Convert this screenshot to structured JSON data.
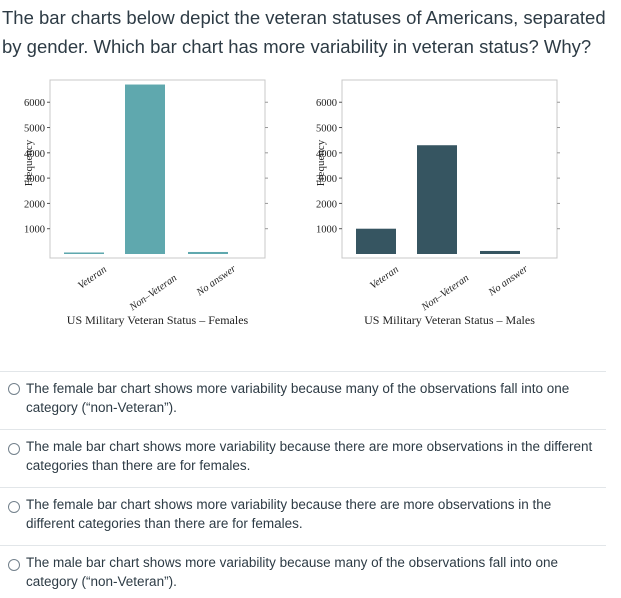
{
  "question": "The bar charts below depict the veteran statuses of Americans, separated by gender. Which bar chart has more variability in veteran status? Why?",
  "chart_data": [
    {
      "type": "bar",
      "title": "US Military Veteran Status – Females",
      "ylabel": "Frequency",
      "xlabel": "",
      "categories": [
        "Veteran",
        "Non–Veteran",
        "No answer"
      ],
      "values": [
        60,
        6700,
        80
      ],
      "yticks": [
        1000,
        2000,
        3000,
        4000,
        5000,
        6000
      ],
      "ylim": [
        0,
        6800
      ],
      "bar_color": "#5fa8ae",
      "grid": false
    },
    {
      "type": "bar",
      "title": "US Military Veteran Status – Males",
      "ylabel": "Frequency",
      "xlabel": "",
      "categories": [
        "Veteran",
        "Non–Veteran",
        "No answer"
      ],
      "values": [
        1000,
        4300,
        120
      ],
      "yticks": [
        1000,
        2000,
        3000,
        4000,
        5000,
        6000
      ],
      "ylim": [
        0,
        6800
      ],
      "bar_color": "#365561",
      "grid": false
    }
  ],
  "answers": [
    {
      "text": "The female bar chart shows more variability because many of the observations fall into one category (“non-Veteran”)."
    },
    {
      "text": "The male bar chart shows more variability because there are more observations in the different categories than there are for females."
    },
    {
      "text": "The female bar chart shows more variability because there are more observations in the different categories than there are for females."
    },
    {
      "text": "The male bar chart shows more variability because many of the observations fall into one category (“non-Veteran”)."
    }
  ]
}
